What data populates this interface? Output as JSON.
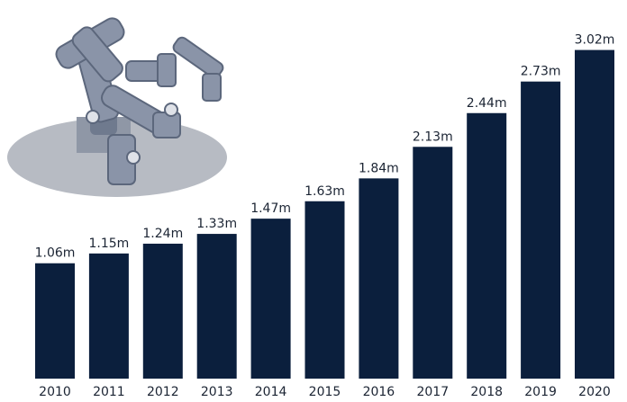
{
  "chart_data": {
    "type": "bar",
    "categories": [
      "2010",
      "2011",
      "2012",
      "2013",
      "2014",
      "2015",
      "2016",
      "2017",
      "2018",
      "2019",
      "2020"
    ],
    "values": [
      1.06,
      1.15,
      1.24,
      1.33,
      1.47,
      1.63,
      1.84,
      2.13,
      2.44,
      2.73,
      3.02
    ],
    "value_labels": [
      "1.06m",
      "1.15m",
      "1.24m",
      "1.33m",
      "1.47m",
      "1.63m",
      "1.84m",
      "2.13m",
      "2.44m",
      "2.73m",
      "3.02m"
    ],
    "color": "#0b1f3d"
  }
}
